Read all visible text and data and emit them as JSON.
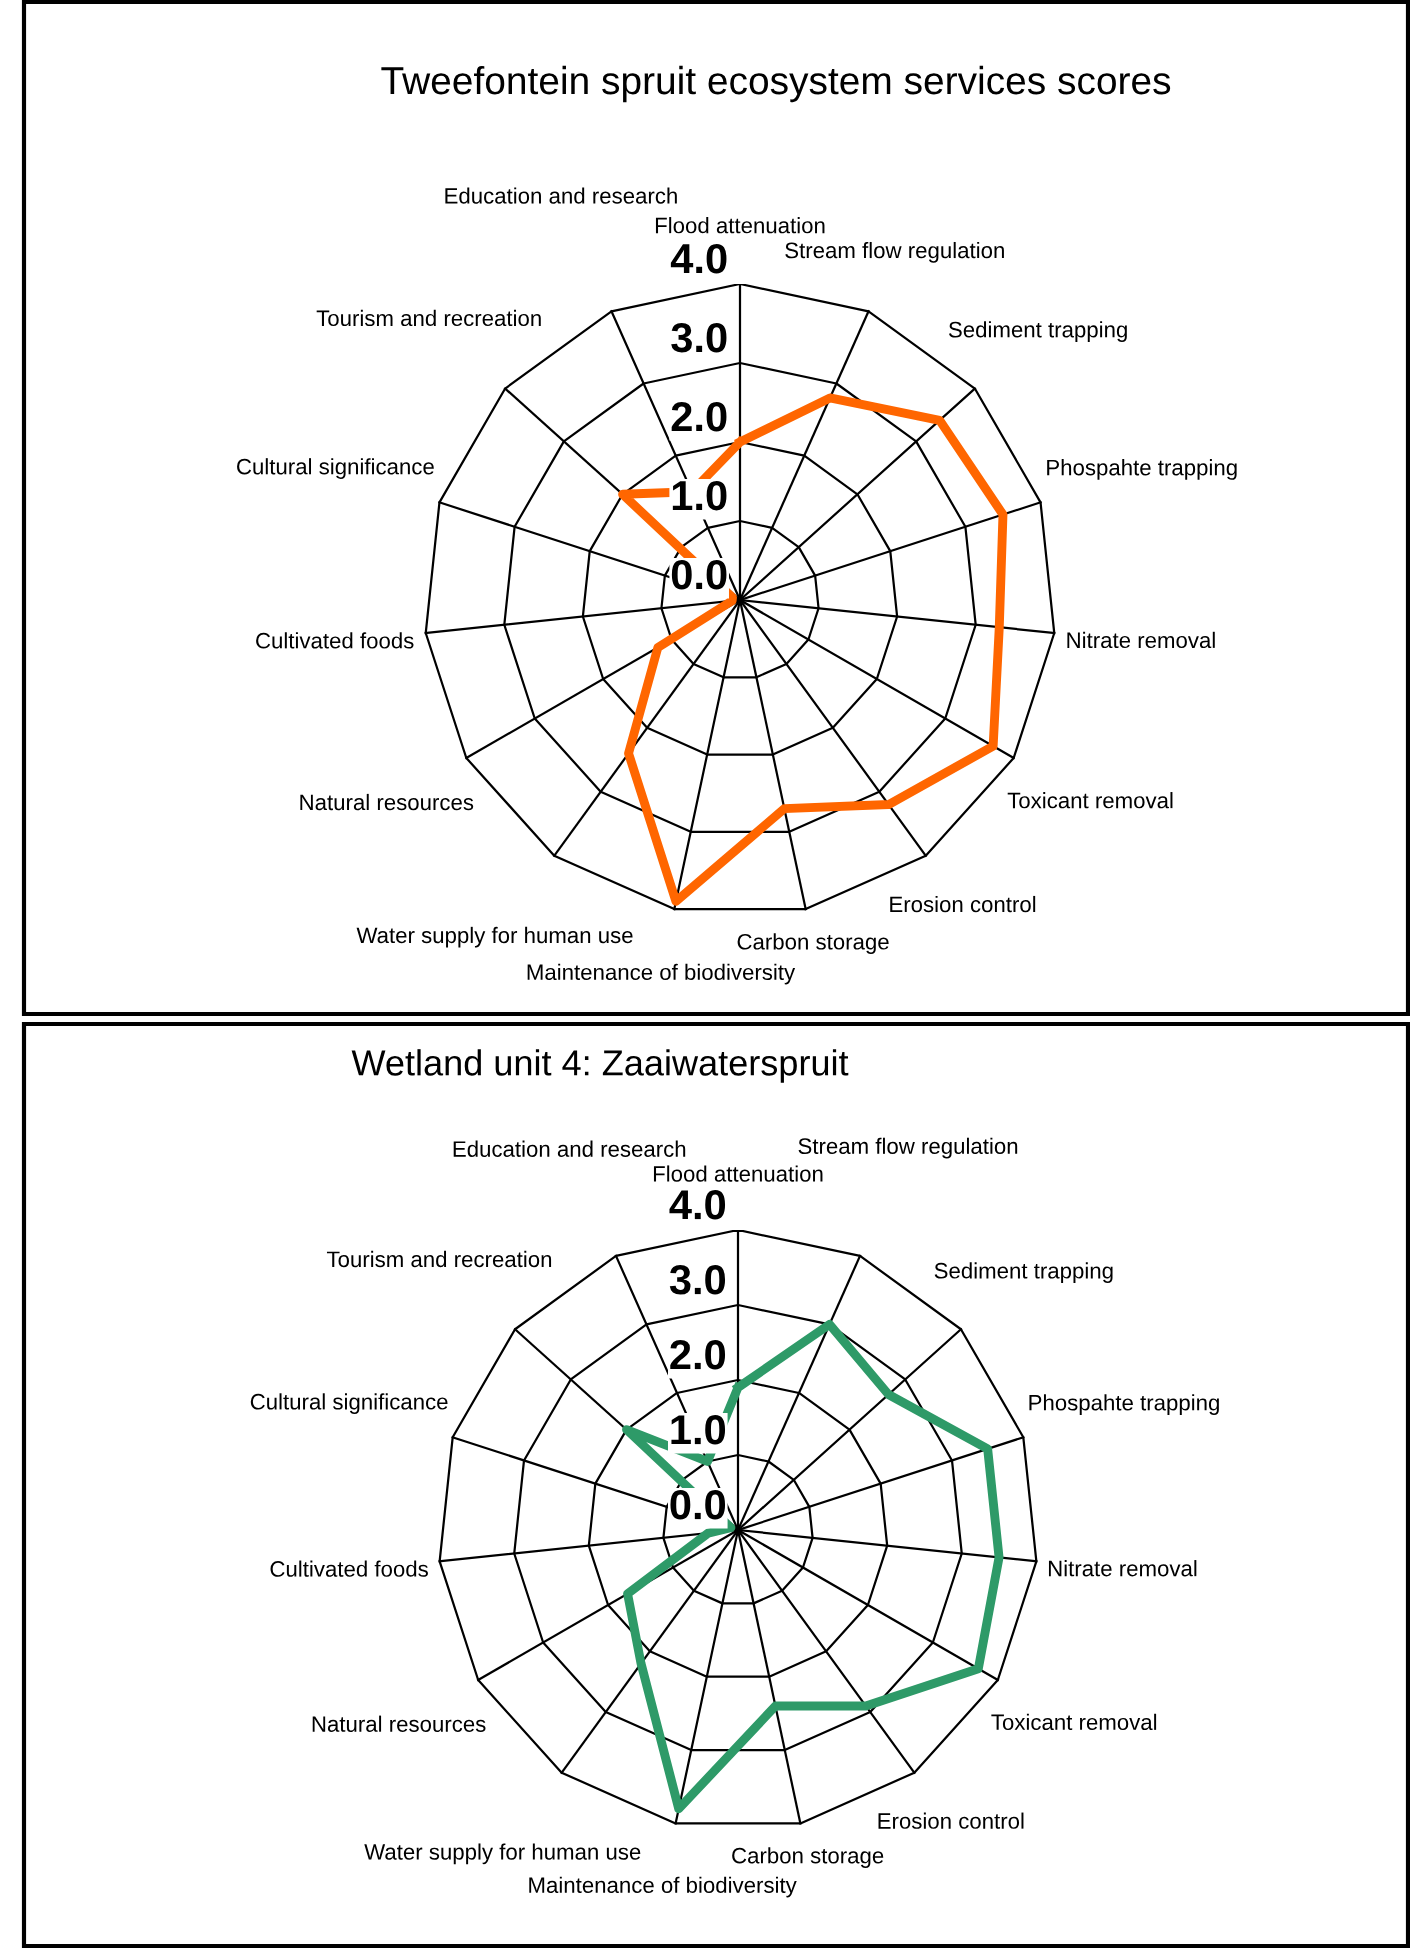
{
  "chart_data": [
    {
      "type": "radar",
      "title": "Tweefontein spruit ecosystem services scores",
      "categories": [
        "Flood attenuation",
        "Stream flow regulation",
        "Sediment trapping",
        "Phospahte trapping",
        "Nitrate removal",
        "Toxicant removal",
        "Erosion control",
        "Carbon storage",
        "Maintenance of biodiversity",
        "Water supply for human use",
        "Natural resources",
        "Cultivated foods",
        "Cultural significance",
        "Tourism and recreation",
        "Education and research"
      ],
      "series": [
        {
          "color": "#ff6600",
          "values": [
            2.0,
            2.8,
            3.4,
            3.5,
            3.3,
            3.7,
            3.2,
            2.7,
            3.9,
            2.4,
            1.2,
            0.1,
            0.1,
            2.0,
            1.5
          ]
        }
      ],
      "ylim": [
        0,
        4
      ],
      "yticks": [
        {
          "value": 0,
          "label": "0.0"
        },
        {
          "value": 1,
          "label": "1.0"
        },
        {
          "value": 2,
          "label": "2.0"
        },
        {
          "value": 3,
          "label": "3.0"
        },
        {
          "value": 4,
          "label": "4.0"
        }
      ],
      "grid": true
    },
    {
      "type": "radar",
      "title": "Wetland unit 4: Zaaiwaterspruit",
      "categories": [
        "Flood attenuation",
        "Stream flow regulation",
        "Sediment trapping",
        "Phospahte trapping",
        "Nitrate removal",
        "Toxicant removal",
        "Erosion control",
        "Carbon storage",
        "Maintenance of biodiversity",
        "Water supply for human use",
        "Natural resources",
        "Cultivated foods",
        "Cultural significance",
        "Tourism and recreation",
        "Education and research"
      ],
      "series": [
        {
          "color": "#2e9a68",
          "values": [
            1.9,
            3.0,
            2.7,
            3.5,
            3.5,
            3.7,
            2.9,
            2.4,
            3.8,
            2.2,
            1.7,
            0.4,
            0.1,
            2.0,
            1.0
          ]
        }
      ],
      "ylim": [
        0,
        4
      ],
      "yticks": [
        {
          "value": 0,
          "label": "0.0"
        },
        {
          "value": 1,
          "label": "1.0"
        },
        {
          "value": 2,
          "label": "2.0"
        },
        {
          "value": 3,
          "label": "3.0"
        },
        {
          "value": 4,
          "label": "4.0"
        }
      ],
      "grid": true
    }
  ]
}
